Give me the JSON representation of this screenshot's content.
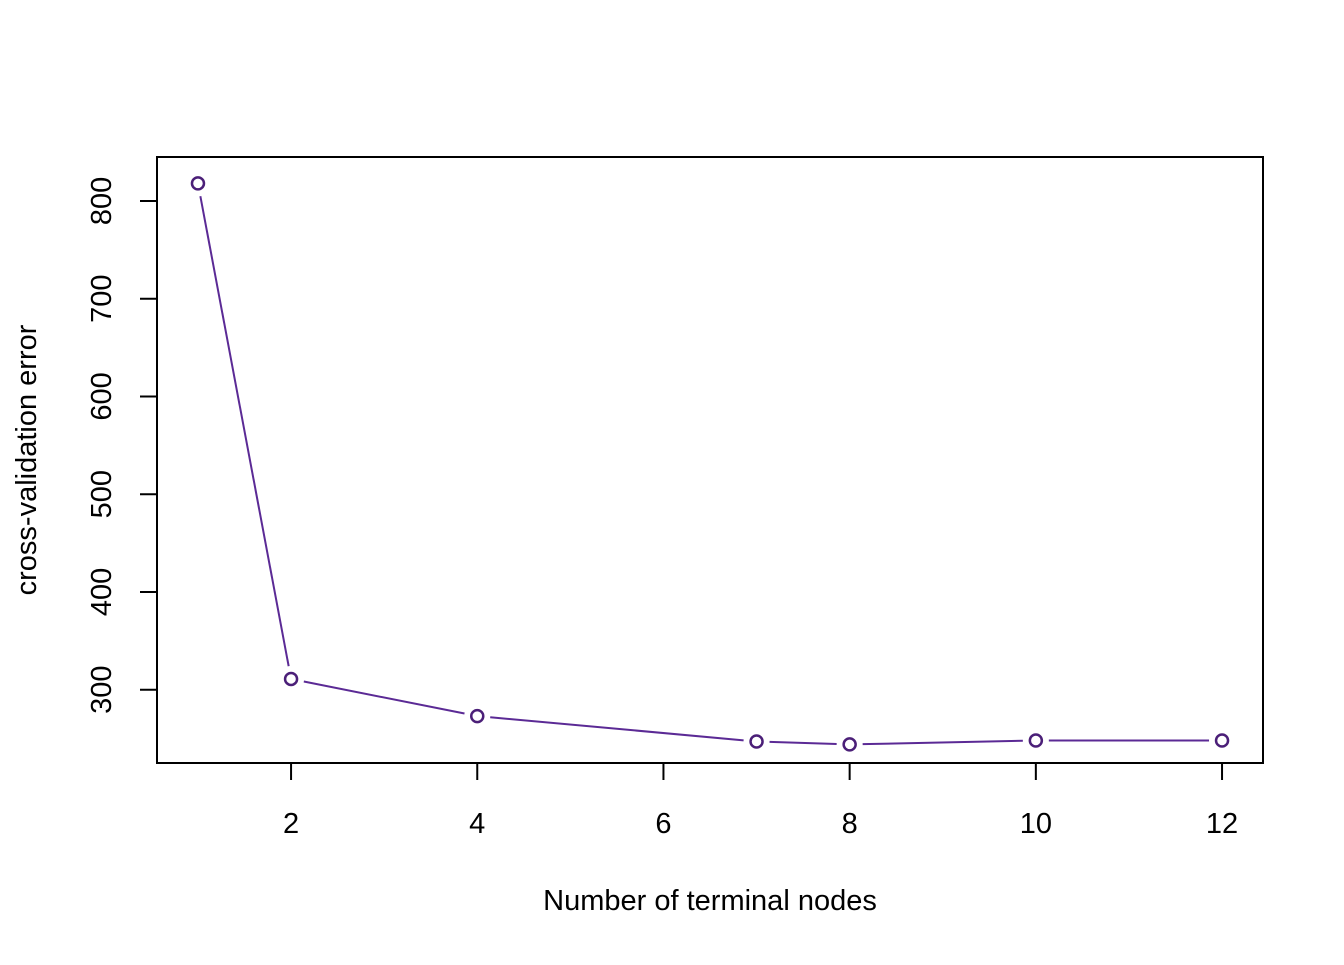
{
  "chart_data": {
    "type": "line",
    "title": "",
    "xlabel": "Number of terminal nodes",
    "ylabel": "cross-validation error",
    "x": [
      1,
      2,
      4,
      7,
      8,
      10,
      12
    ],
    "series": [
      {
        "values": [
          818,
          311,
          273,
          247,
          244,
          248,
          248
        ]
      }
    ],
    "x_ticks": [
      2,
      4,
      6,
      8,
      10,
      12
    ],
    "y_ticks": [
      300,
      400,
      500,
      600,
      700,
      800
    ],
    "xlim": [
      0.56,
      12.44
    ],
    "ylim": [
      225,
      845
    ],
    "grid": false,
    "legend": "none",
    "colors": {
      "line": "#5b2a95",
      "point_stroke": "#4b1f78",
      "axis": "#000000"
    },
    "markers": "open-circle"
  }
}
